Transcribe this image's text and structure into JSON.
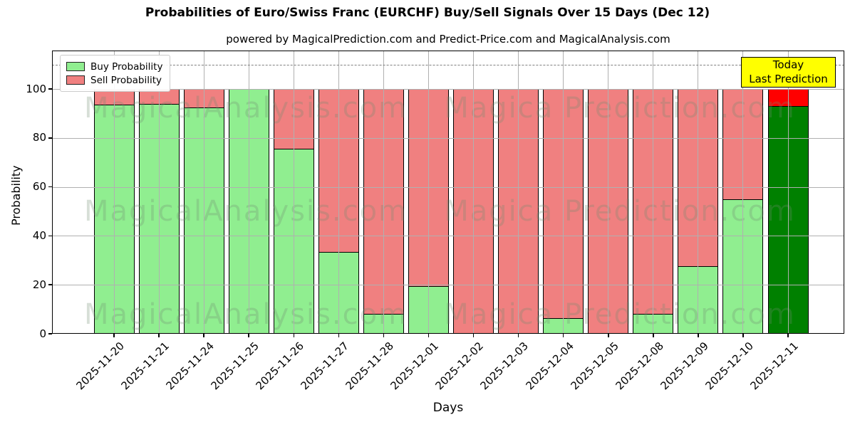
{
  "title": "Probabilities of Euro/Swiss Franc (EURCHF) Buy/Sell Signals Over 15 Days (Dec 12)",
  "subtitle": "powered by MagicalPrediction.com and Predict-Price.com and MagicalAnalysis.com",
  "legend": {
    "buy_label": "Buy Probability",
    "sell_label": "Sell Probability"
  },
  "annotation_box": {
    "line1": "Today",
    "line2": "Last Prediction"
  },
  "watermarks": {
    "left_text": "MagicalAnalysis.com",
    "right_text": "Magica Prediction.com"
  },
  "axes": {
    "ylabel": "Probability",
    "xlabel": "Days",
    "y_tick_labels": [
      "0",
      "20",
      "40",
      "60",
      "80",
      "100"
    ],
    "y_tick_values": [
      0,
      20,
      40,
      60,
      80,
      100
    ]
  },
  "colors": {
    "buy": "#90EE90",
    "sell": "#F08080",
    "last_buy": "#008000",
    "last_sell": "#FF0000",
    "today_box": "#FFFF00",
    "grid": "#b0b0b0",
    "dashed_line": "#7f7f7f",
    "bar_edge": "#000000"
  },
  "chart_data": {
    "type": "bar",
    "stacked": true,
    "title": "Probabilities of Euro/Swiss Franc (EURCHF) Buy/Sell Signals Over 15 Days (Dec 12)",
    "xlabel": "Days",
    "ylabel": "Probability",
    "ylim": [
      0,
      116
    ],
    "grid": true,
    "legend_position": "upper left",
    "dashed_reference_line_y": 110,
    "categories": [
      "2025-11-20",
      "2025-11-21",
      "2025-11-24",
      "2025-11-25",
      "2025-11-26",
      "2025-11-27",
      "2025-11-28",
      "2025-12-01",
      "2025-12-02",
      "2025-12-03",
      "2025-12-04",
      "2025-12-05",
      "2025-12-08",
      "2025-12-09",
      "2025-12-10",
      "2025-12-11"
    ],
    "series": [
      {
        "name": "Buy Probability",
        "color": "#90EE90",
        "values": [
          93.5,
          94,
          92.5,
          100,
          75.5,
          33.5,
          8,
          19.5,
          0,
          0,
          6.5,
          0,
          8,
          27.5,
          55,
          93
        ]
      },
      {
        "name": "Sell Probability",
        "color": "#F08080",
        "values": [
          6.5,
          6,
          7.5,
          0,
          24.5,
          66.5,
          92,
          80.5,
          100,
          100,
          93.5,
          100,
          92,
          72.5,
          45,
          7
        ]
      }
    ],
    "last_bar_note": "Today / Last Prediction bar uses dark green and bright red"
  }
}
